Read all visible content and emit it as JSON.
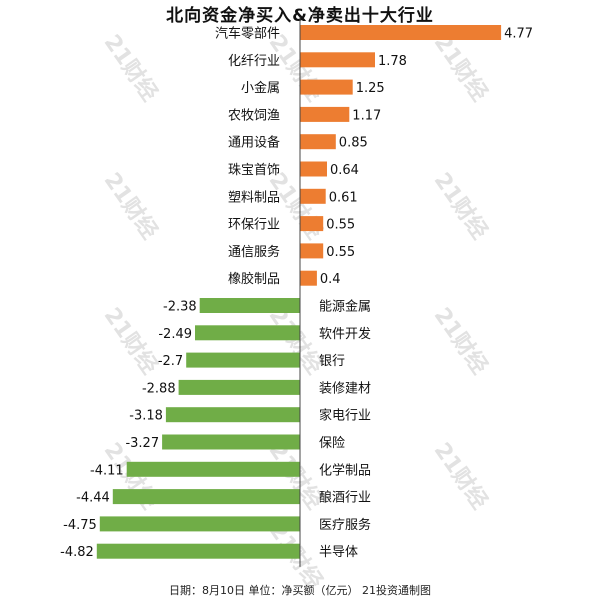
{
  "colors": {
    "positive": "#ED7D31",
    "negative": "#70AD47",
    "axis": "#444444",
    "text": "#111111",
    "watermark": "#d6d6d6"
  },
  "watermark": "21财经",
  "chart_data": {
    "type": "bar",
    "orientation": "horizontal",
    "title": "北向资金净买入&净卖出十大行业",
    "footer": "日期：8月10日 单位：净买额（亿元） 21投资通制图",
    "categories": [
      "汽车零部件",
      "化纤行业",
      "小金属",
      "农牧饲渔",
      "通用设备",
      "珠宝首饰",
      "塑料制品",
      "环保行业",
      "通信服务",
      "橡胶制品",
      "能源金属",
      "软件开发",
      "银行",
      "装修建材",
      "家电行业",
      "保险",
      "化学制品",
      "酿酒行业",
      "医疗服务",
      "半导体"
    ],
    "values": [
      4.77,
      1.78,
      1.25,
      1.17,
      0.85,
      0.64,
      0.61,
      0.55,
      0.55,
      0.4,
      -2.38,
      -2.49,
      -2.7,
      -2.88,
      -3.18,
      -3.27,
      -4.11,
      -4.44,
      -4.75,
      -4.82
    ],
    "value_labels": [
      "4.77",
      "1.78",
      "1.25",
      "1.17",
      "0.85",
      "0.64",
      "0.61",
      "0.55",
      "0.55",
      "0.4",
      "-2.38",
      "-2.49",
      "-2.7",
      "-2.88",
      "-3.18",
      "-3.27",
      "-4.11",
      "-4.44",
      "-4.75",
      "-4.82"
    ],
    "xlim": [
      -5.1,
      5.1
    ],
    "grid": false,
    "legend": "none"
  }
}
